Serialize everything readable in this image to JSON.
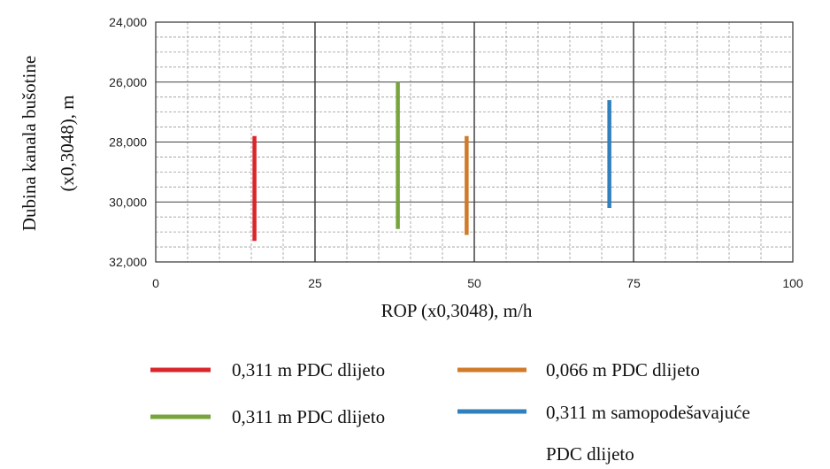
{
  "chart_data": {
    "type": "line",
    "xlabel": "ROP (x0,3048), m/h",
    "ylabel_line1": "Dubina kanala bušotine",
    "ylabel_line2": "(x0,3048), m",
    "xlim": [
      0,
      100
    ],
    "ylim": [
      24000,
      32000
    ],
    "y_inverted": true,
    "x_ticks": [
      "0",
      "25",
      "50",
      "75",
      "100"
    ],
    "y_ticks": [
      "24,000",
      "26,000",
      "28,000",
      "30,000",
      "32,000"
    ],
    "grid": true,
    "legend_placement": "bottom",
    "series": [
      {
        "name": "0,311 m PDC dlijeto",
        "color": "#d9262b",
        "x": [
          15.5,
          15.5
        ],
        "y": [
          27800,
          31300
        ]
      },
      {
        "name": "0,311 m PDC dlijeto",
        "color": "#77a43c",
        "x": [
          38.0,
          38.0
        ],
        "y": [
          26000,
          30900
        ]
      },
      {
        "name": "0,066 m PDC dlijeto",
        "color": "#d07a2a",
        "x": [
          48.8,
          48.8
        ],
        "y": [
          27800,
          31100
        ]
      },
      {
        "name": "0,311 m samopodešavajuće",
        "name_line2": "PDC dlijeto",
        "color": "#2f80bd",
        "x": [
          71.2,
          71.2
        ],
        "y": [
          26600,
          30200
        ]
      }
    ]
  }
}
